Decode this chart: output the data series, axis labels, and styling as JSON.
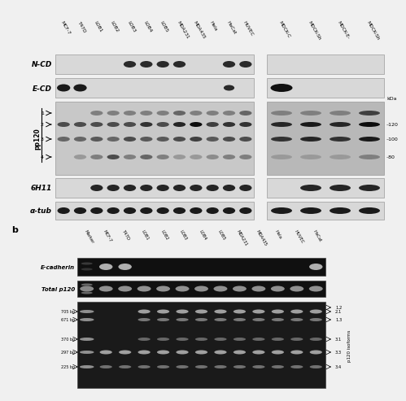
{
  "fig_width": 4.74,
  "fig_height": 4.74,
  "bg_color": "#f0f0f0",
  "main_cols": [
    "MCF-7",
    "T47D",
    "LOB1",
    "LOB2",
    "LOB3",
    "LOB4",
    "LOB5",
    "MDA231",
    "MDA435",
    "Hela",
    "HaCat",
    "HUVEC"
  ],
  "mdck_cols": [
    "MDCK-C",
    "MDCK-Sh",
    "MDCK-E-",
    "MDCK-Sh"
  ],
  "b_cols": [
    "Marker",
    "MCF-7",
    "T47D",
    "LOB1",
    "LOB2",
    "LOB3",
    "LOB4",
    "LOB5",
    "MDA231",
    "MDA435",
    "Hela",
    "HUVEC",
    "HaCat"
  ],
  "bp_labels": [
    "705 bp",
    "671 bp",
    "370 bp",
    "297 bp",
    "225 bp"
  ],
  "isoform_labels": [
    "1.2",
    "2.1",
    "1.3",
    "3.1",
    "3.3",
    "3.4"
  ],
  "kda_values": [
    "120",
    "100",
    "80"
  ],
  "blot_bg": "#d8d8d8",
  "blot_bg2": "#c0c0c0",
  "gel_bg": "#101010",
  "band_dark": "#1a1a1a",
  "band_light": "#c8c8c8",
  "white": "#ffffff",
  "black": "#000000"
}
